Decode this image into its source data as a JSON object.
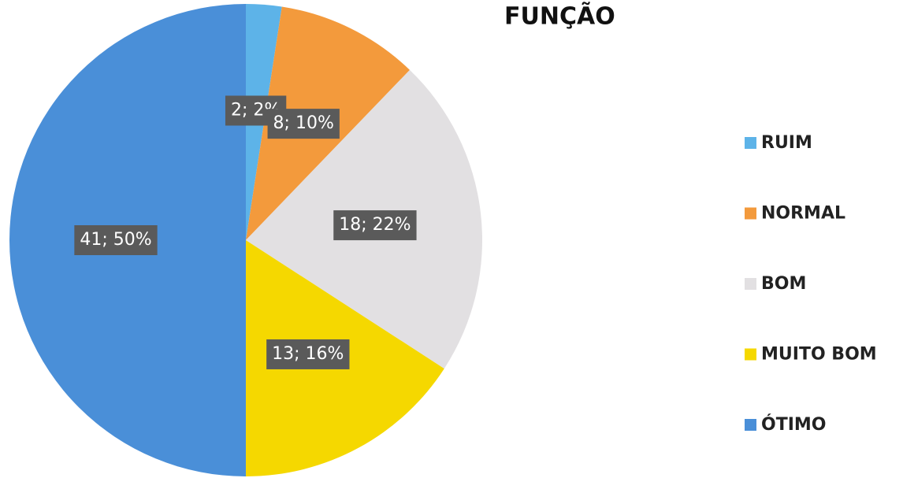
{
  "chart_data": {
    "type": "pie",
    "title": "FUNÇÃO",
    "categories": [
      "RUIM",
      "NORMAL",
      "BOM",
      "MUITO BOM",
      "ÓTIMO"
    ],
    "values": [
      2,
      8,
      18,
      13,
      41
    ],
    "value_labels": [
      "2; 2%",
      "8; 10%",
      "18; 22%",
      "13; 16%",
      "41; 50%"
    ],
    "colors": [
      "#5db3e8",
      "#f39a3c",
      "#e2e0e2",
      "#f5d800",
      "#4a8fd8"
    ],
    "legend": "right"
  }
}
